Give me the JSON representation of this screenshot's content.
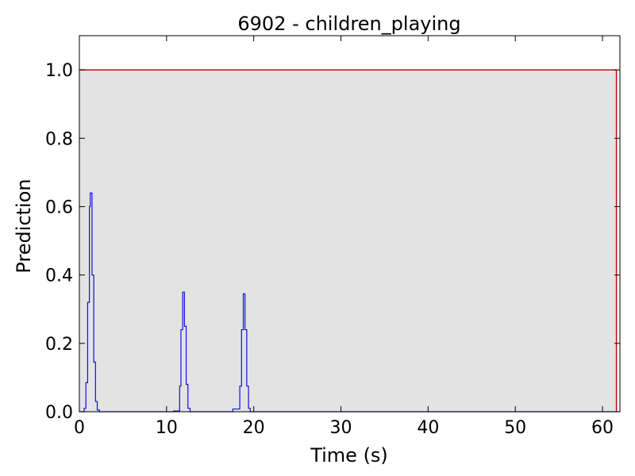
{
  "chart_data": {
    "type": "line",
    "title": "6902 - children_playing",
    "xlabel": "Time (s)",
    "ylabel": "Prediction",
    "xlim": [
      0,
      62
    ],
    "ylim": [
      0,
      1.1
    ],
    "x_ticks": [
      0,
      10,
      20,
      30,
      40,
      50,
      60
    ],
    "y_ticks": [
      "0.0",
      "0.2",
      "0.4",
      "0.6",
      "0.8",
      "1.0"
    ],
    "grid": false,
    "legend": "none",
    "colors": {
      "ground_truth_fill": "#e3e3e3",
      "ground_truth_line": "#c01010",
      "prediction_line": "#1010e0"
    },
    "series": [
      {
        "role": "ground_truth",
        "style": "filled-step",
        "x": [
          0,
          61.6,
          61.6
        ],
        "y": [
          1.0,
          1.0,
          0.0
        ]
      },
      {
        "role": "prediction",
        "style": "step",
        "x": [
          0,
          0.55,
          0.55,
          0.75,
          0.75,
          0.95,
          0.95,
          1.15,
          1.15,
          1.25,
          1.25,
          1.45,
          1.45,
          1.65,
          1.65,
          1.85,
          1.85,
          2.05,
          2.05,
          2.3,
          2.3,
          10.8,
          10.8,
          11.5,
          11.5,
          11.65,
          11.65,
          11.85,
          11.85,
          12.05,
          12.05,
          12.25,
          12.25,
          12.45,
          12.45,
          12.7,
          12.7,
          17.6,
          17.6,
          18.4,
          18.4,
          18.6,
          18.6,
          18.8,
          18.8,
          19.0,
          19.0,
          19.2,
          19.2,
          19.4,
          19.4,
          19.6,
          19.6,
          62
        ],
        "y": [
          0,
          0,
          0.01,
          0.01,
          0.085,
          0.085,
          0.32,
          0.32,
          0.6,
          0.6,
          0.64,
          0.64,
          0.4,
          0.4,
          0.145,
          0.145,
          0.03,
          0.03,
          0.005,
          0.005,
          0,
          0,
          0.002,
          0.002,
          0.075,
          0.075,
          0.24,
          0.24,
          0.35,
          0.35,
          0.25,
          0.25,
          0.08,
          0.08,
          0.01,
          0.01,
          0,
          0,
          0.008,
          0.008,
          0.075,
          0.075,
          0.24,
          0.24,
          0.345,
          0.345,
          0.24,
          0.24,
          0.075,
          0.075,
          0.01,
          0.01,
          0,
          0
        ]
      }
    ]
  }
}
